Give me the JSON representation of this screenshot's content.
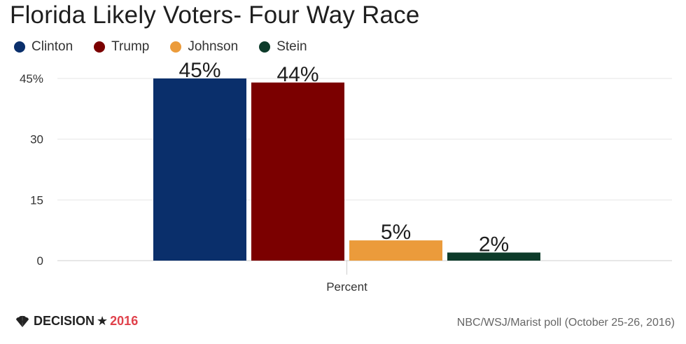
{
  "chart_data": {
    "type": "bar",
    "title": "Florida Likely Voters- Four Way Race",
    "categories": [
      "Clinton",
      "Trump",
      "Johnson",
      "Stein"
    ],
    "values": [
      45,
      44,
      5,
      2
    ],
    "data_labels": [
      "45%",
      "44%",
      "5%",
      "2%"
    ],
    "colors": [
      "#0a2f6b",
      "#7b0000",
      "#eb9b3b",
      "#0d3b2a"
    ],
    "xlabel": "Percent",
    "ylabel": "",
    "ylim": [
      0,
      45
    ],
    "yticks": [
      0,
      15,
      30,
      45
    ],
    "ytick_labels": [
      "0",
      "15",
      "30",
      "45%"
    ],
    "grid": true,
    "legend_position": "top-left"
  },
  "legend": [
    {
      "label": "Clinton",
      "color": "#0a2f6b"
    },
    {
      "label": "Trump",
      "color": "#7b0000"
    },
    {
      "label": "Johnson",
      "color": "#eb9b3b"
    },
    {
      "label": "Stein",
      "color": "#0d3b2a"
    }
  ],
  "footer": {
    "logo_text": "DECISION",
    "logo_star": "★",
    "logo_year": "2016",
    "logo_icon": "nbc-peacock-icon",
    "source": "NBC/WSJ/Marist poll (October 25-26, 2016)"
  }
}
